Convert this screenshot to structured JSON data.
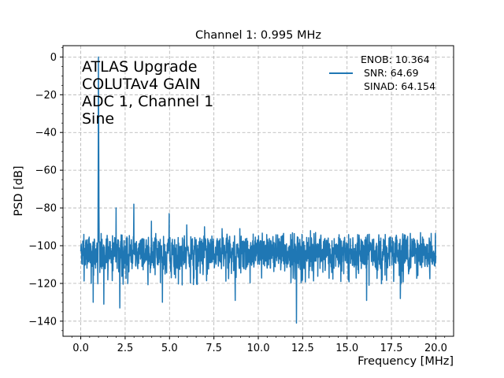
{
  "chart_data": {
    "type": "line",
    "title": "Channel 1: 0.995 MHz",
    "xlabel": "Frequency [MHz]",
    "ylabel": "PSD [dB]",
    "xlim": [
      -1.0,
      21.0
    ],
    "ylim": [
      -148,
      6
    ],
    "grid": true,
    "x_ticks": [
      0.0,
      2.5,
      5.0,
      7.5,
      10.0,
      12.5,
      15.0,
      17.5,
      20.0
    ],
    "x_tick_labels": [
      "0.0",
      "2.5",
      "5.0",
      "7.5",
      "10.0",
      "12.5",
      "15.0",
      "17.5",
      "20.0"
    ],
    "y_ticks": [
      0,
      -20,
      -40,
      -60,
      -80,
      -100,
      -120,
      -140
    ],
    "y_tick_labels": [
      "0",
      "−20",
      "−40",
      "−60",
      "−80",
      "−100",
      "−120",
      "−140"
    ],
    "annotation_lines": [
      "ATLAS Upgrade",
      "COLUTAv4 GAIN",
      "ADC 1, Channel 1",
      "Sine"
    ],
    "legend": {
      "position": "upper-right",
      "lines": [
        "ENOB: 10.364",
        " SNR: 64.69",
        " SINAD: 64.154"
      ]
    },
    "series": [
      {
        "color": "#1f77b4",
        "noise_floor": {
          "x_range": [
            0.0,
            20.0
          ],
          "mean": -104,
          "upper": -93,
          "lower": -121
        },
        "peaks": [
          {
            "x": 0.995,
            "y": 0
          },
          {
            "x": 1.99,
            "y": -80
          },
          {
            "x": 2.99,
            "y": -78
          },
          {
            "x": 3.98,
            "y": -87
          },
          {
            "x": 4.98,
            "y": -83
          },
          {
            "x": 5.97,
            "y": -89
          },
          {
            "x": 6.97,
            "y": -90
          },
          {
            "x": 7.96,
            "y": -91
          },
          {
            "x": 8.96,
            "y": -91
          },
          {
            "x": 12.94,
            "y": -92
          }
        ],
        "dips": [
          {
            "x": 0.7,
            "y": -130
          },
          {
            "x": 1.3,
            "y": -131
          },
          {
            "x": 2.2,
            "y": -133
          },
          {
            "x": 4.6,
            "y": -130
          },
          {
            "x": 8.7,
            "y": -129
          },
          {
            "x": 12.15,
            "y": -141
          },
          {
            "x": 16.1,
            "y": -129
          },
          {
            "x": 18.0,
            "y": -128
          }
        ]
      }
    ]
  },
  "colors": {
    "series": "#1f77b4",
    "grid": "#b0b0b0",
    "axes": "#000000"
  }
}
